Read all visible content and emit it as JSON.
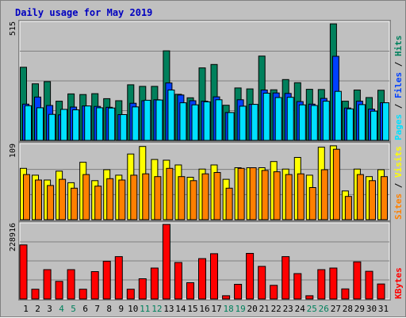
{
  "title": "Daily usage for May 2019",
  "colors": {
    "background": "#c0c0c0",
    "title": "#0000c0",
    "hits": "#00805c",
    "files": "#0040ff",
    "pages": "#00e0ff",
    "visits": "#ffff00",
    "sites": "#ff8000",
    "kbytes": "#ff0000",
    "weekend_day": "#00805c",
    "weekday": "#000000"
  },
  "chart_data": [
    {
      "type": "bar",
      "name": "hits-files-pages",
      "y_max_label": "515",
      "ylim": [
        0,
        515
      ],
      "legend": [
        "Pages",
        "Files",
        "Hits"
      ],
      "legend_placement": "right",
      "grid": true,
      "x": [
        "1",
        "2",
        "3",
        "4",
        "5",
        "6",
        "7",
        "8",
        "9",
        "10",
        "11",
        "12",
        "13",
        "14",
        "15",
        "16",
        "17",
        "18",
        "19",
        "20",
        "21",
        "22",
        "23",
        "24",
        "25",
        "26",
        "27",
        "28",
        "29",
        "30",
        "31"
      ],
      "series": [
        {
          "name": "Hits",
          "values": [
            321,
            248,
            258,
            172,
            204,
            201,
            205,
            183,
            174,
            244,
            237,
            237,
            393,
            202,
            187,
            318,
            333,
            154,
            230,
            226,
            370,
            222,
            267,
            253,
            224,
            223,
            511,
            172,
            221,
            188,
            220
          ]
        },
        {
          "name": "Files",
          "values": [
            159,
            190,
            153,
            112,
            146,
            151,
            149,
            145,
            113,
            163,
            174,
            178,
            252,
            199,
            174,
            172,
            191,
            122,
            178,
            158,
            221,
            208,
            206,
            170,
            159,
            184,
            369,
            142,
            172,
            137,
            165
          ]
        },
        {
          "name": "Pages",
          "values": [
            152,
            143,
            114,
            136,
            134,
            151,
            143,
            142,
            113,
            147,
            176,
            177,
            221,
            165,
            156,
            169,
            178,
            122,
            150,
            158,
            207,
            188,
            189,
            156,
            153,
            172,
            215,
            138,
            157,
            128,
            165
          ]
        }
      ]
    },
    {
      "type": "bar",
      "name": "visits-sites",
      "y_max_label": "109",
      "ylim": [
        0,
        109
      ],
      "legend": [
        "Sites",
        "Visits"
      ],
      "legend_placement": "right",
      "grid": true,
      "x": [
        "1",
        "2",
        "3",
        "4",
        "5",
        "6",
        "7",
        "8",
        "9",
        "10",
        "11",
        "12",
        "13",
        "14",
        "15",
        "16",
        "17",
        "18",
        "19",
        "20",
        "21",
        "22",
        "23",
        "24",
        "25",
        "26",
        "27",
        "28",
        "29",
        "30",
        "31"
      ],
      "series": [
        {
          "name": "Visits",
          "values": [
            75,
            65,
            58,
            71,
            54,
            84,
            57,
            73,
            65,
            96,
            107,
            88,
            87,
            80,
            62,
            74,
            80,
            59,
            76,
            76,
            76,
            85,
            74,
            91,
            65,
            106,
            108,
            42,
            74,
            63,
            73
          ]
        },
        {
          "name": "Sites",
          "values": [
            66,
            58,
            50,
            59,
            46,
            66,
            49,
            60,
            58,
            65,
            67,
            63,
            75,
            63,
            57,
            67,
            69,
            46,
            75,
            76,
            72,
            70,
            66,
            67,
            47,
            73,
            103,
            34,
            66,
            57,
            63
          ]
        }
      ]
    },
    {
      "type": "bar",
      "name": "kbytes",
      "y_max_label": "228916",
      "ylim": [
        0,
        228916
      ],
      "legend": [
        "KBytes"
      ],
      "legend_placement": "right",
      "grid": true,
      "x": [
        "1",
        "2",
        "3",
        "4",
        "5",
        "6",
        "7",
        "8",
        "9",
        "10",
        "11",
        "12",
        "13",
        "14",
        "15",
        "16",
        "17",
        "18",
        "19",
        "20",
        "21",
        "22",
        "23",
        "24",
        "25",
        "26",
        "27",
        "28",
        "29",
        "30",
        "31"
      ],
      "series": [
        {
          "name": "KBytes",
          "values": [
            166000,
            30000,
            90000,
            54000,
            90000,
            30000,
            84000,
            116000,
            130000,
            30000,
            62000,
            95000,
            228916,
            112000,
            50000,
            124000,
            139000,
            10000,
            45000,
            140000,
            100000,
            42000,
            130000,
            78000,
            10000,
            90000,
            95000,
            31000,
            114000,
            85000,
            46000
          ]
        }
      ]
    }
  ],
  "x_labels": [
    {
      "text": "1",
      "weekend": false
    },
    {
      "text": "2",
      "weekend": false
    },
    {
      "text": "3",
      "weekend": false
    },
    {
      "text": "4",
      "weekend": true
    },
    {
      "text": "5",
      "weekend": true
    },
    {
      "text": "6",
      "weekend": false
    },
    {
      "text": "7",
      "weekend": false
    },
    {
      "text": "8",
      "weekend": false
    },
    {
      "text": "9",
      "weekend": false
    },
    {
      "text": "10",
      "weekend": false
    },
    {
      "text": "11",
      "weekend": true
    },
    {
      "text": "12",
      "weekend": true
    },
    {
      "text": "13",
      "weekend": false
    },
    {
      "text": "14",
      "weekend": false
    },
    {
      "text": "15",
      "weekend": false
    },
    {
      "text": "16",
      "weekend": false
    },
    {
      "text": "17",
      "weekend": false
    },
    {
      "text": "18",
      "weekend": true
    },
    {
      "text": "19",
      "weekend": true
    },
    {
      "text": "20",
      "weekend": false
    },
    {
      "text": "21",
      "weekend": false
    },
    {
      "text": "22",
      "weekend": false
    },
    {
      "text": "23",
      "weekend": false
    },
    {
      "text": "24",
      "weekend": false
    },
    {
      "text": "25",
      "weekend": true
    },
    {
      "text": "26",
      "weekend": true
    },
    {
      "text": "27",
      "weekend": false
    },
    {
      "text": "28",
      "weekend": false
    },
    {
      "text": "29",
      "weekend": false
    },
    {
      "text": "30",
      "weekend": false
    },
    {
      "text": "31",
      "weekend": false
    }
  ]
}
